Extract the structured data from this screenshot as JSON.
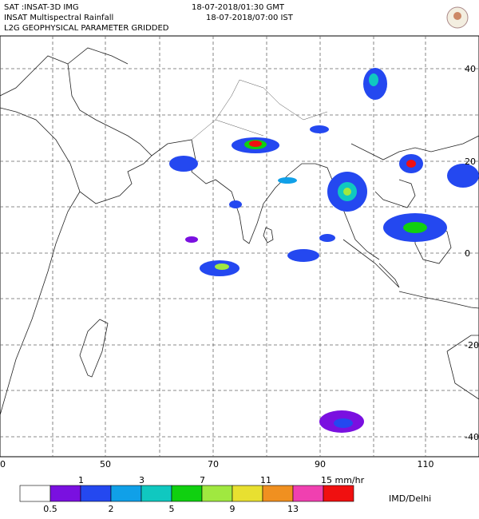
{
  "header": {
    "satellite": "SAT :INSAT-3D IMG",
    "time_gmt": "18-07-2018/01:30 GMT",
    "product": "INSAT Multispectral Rainfall",
    "time_ist": "18-07-2018/07:00 IST",
    "level": "L2G GEOPHYSICAL PARAMETER GRIDDED"
  },
  "map": {
    "lon_labels": [
      "0",
      "50",
      "70",
      "90",
      "110"
    ],
    "lat_labels": [
      "40",
      "20",
      "0",
      "-20",
      "-40"
    ]
  },
  "legend": {
    "colors": [
      "#ffffff",
      "#7a10e0",
      "#2448f0",
      "#10a0e8",
      "#10c8c0",
      "#10d010",
      "#a0e840",
      "#e8e030",
      "#f09020",
      "#f040b0",
      "#f01010"
    ],
    "labels_top": [
      "1",
      "3",
      "7",
      "11",
      "15 mm/hr"
    ],
    "labels_bottom": [
      "0.5",
      "2",
      "5",
      "9",
      "13"
    ],
    "credit": "IMD/Delhi"
  }
}
